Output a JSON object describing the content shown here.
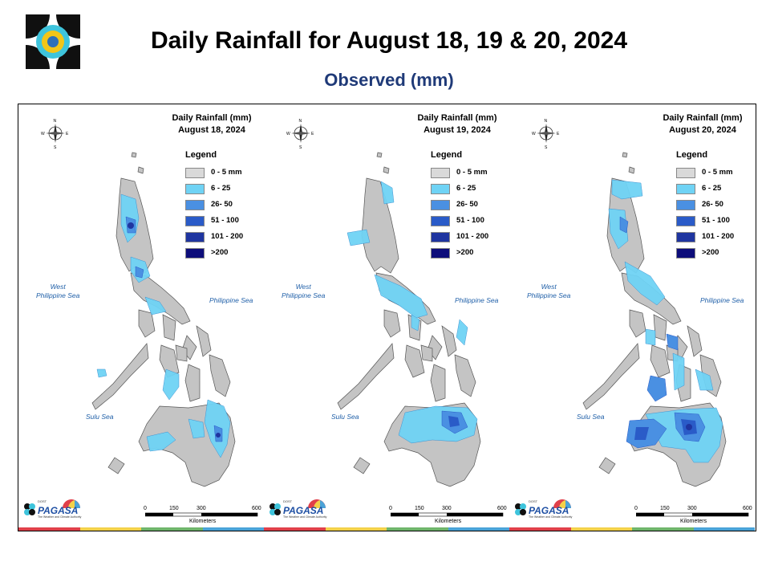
{
  "title": "Daily Rainfall for August 18, 19 & 20, 2024",
  "subtitle": "Observed (mm)",
  "legend": {
    "title": "Legend",
    "items": [
      {
        "label": "0 - 5 mm",
        "color": "#d9d9d9"
      },
      {
        "label": "6 - 25",
        "color": "#6fd3f5"
      },
      {
        "label": "26- 50",
        "color": "#4a90e2"
      },
      {
        "label": "51 - 100",
        "color": "#2a5bc8"
      },
      {
        "label": "101 - 200",
        "color": "#1f35a0"
      },
      {
        "label": ">200",
        "color": "#0d0d7a"
      }
    ]
  },
  "seas": {
    "west": "West\nPhilippine Sea",
    "east": "Philippine Sea",
    "sulu": "Sulu Sea"
  },
  "scale": {
    "ticks": [
      "0",
      "150",
      "300",
      "600"
    ],
    "unit": "Kilometers"
  },
  "compass": {
    "n": "N",
    "s": "S",
    "e": "E",
    "w": "W"
  },
  "agency": {
    "name": "PAGASA",
    "prefix": "DOST",
    "tagline": "The Weather and Climate Authority"
  },
  "panels": [
    {
      "heading": "Daily Rainfall (mm)",
      "date": "August 18, 2024"
    },
    {
      "heading": "Daily Rainfall (mm)",
      "date": "August 19, 2024"
    },
    {
      "heading": "Daily Rainfall (mm)",
      "date": "August 20, 2024"
    }
  ],
  "band_colors": [
    "#e0404a",
    "#f3d14a",
    "#6fb56b",
    "#4aa3d8"
  ]
}
